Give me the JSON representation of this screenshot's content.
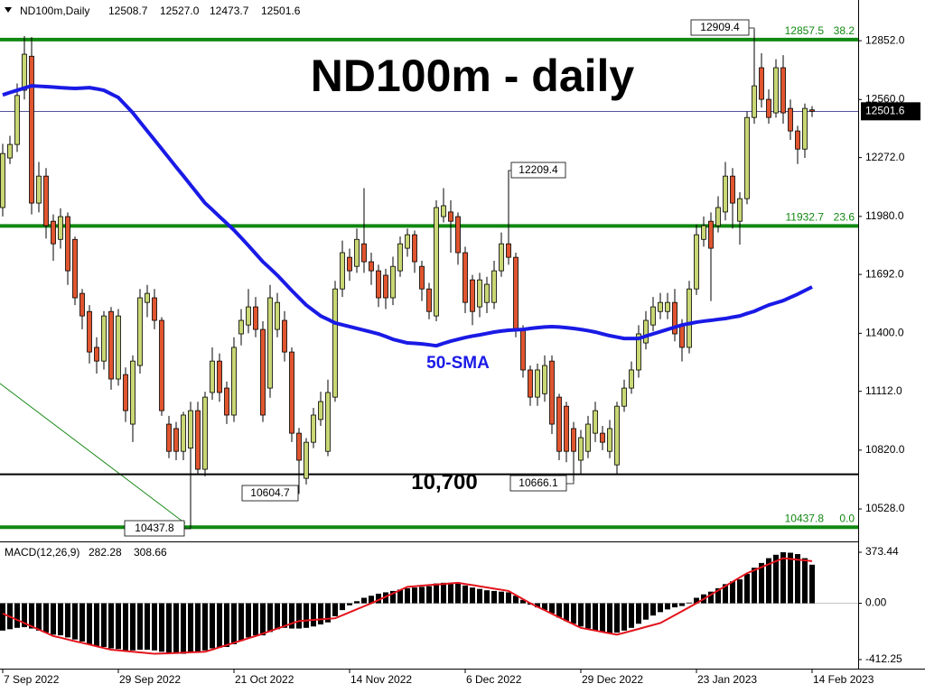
{
  "chart_data": {
    "type": "candlestick",
    "title": "ND100m - daily",
    "header": {
      "symbol": "ND100m,Daily",
      "ohlc_labels": [
        "12508.7",
        "12527.0",
        "12473.7",
        "12501.6"
      ]
    },
    "categories": [
      "7 Sep 2022",
      null,
      null,
      null,
      null,
      null,
      null,
      null,
      null,
      null,
      null,
      null,
      null,
      null,
      null,
      null,
      "29 Sep 2022",
      null,
      null,
      null,
      null,
      null,
      null,
      null,
      null,
      null,
      null,
      null,
      null,
      null,
      null,
      null,
      "21 Oct 2022",
      null,
      null,
      null,
      null,
      null,
      null,
      null,
      null,
      null,
      null,
      null,
      null,
      null,
      null,
      null,
      "14 Nov 2022",
      null,
      null,
      null,
      null,
      null,
      null,
      null,
      null,
      null,
      null,
      null,
      null,
      null,
      null,
      null,
      "6 Dec 2022",
      null,
      null,
      null,
      null,
      null,
      null,
      null,
      null,
      null,
      null,
      null,
      null,
      null,
      null,
      null,
      "29 Dec 2022",
      null,
      null,
      null,
      null,
      null,
      null,
      null,
      null,
      null,
      null,
      null,
      null,
      null,
      null,
      null,
      "23 Jan 2023",
      null,
      null,
      null,
      null,
      null,
      null,
      null,
      null,
      null,
      null,
      null,
      null,
      null,
      null,
      null,
      "14 Feb 2023"
    ],
    "open": [
      12024,
      12270,
      12337,
      12606,
      12775,
      12046,
      12180,
      11956,
      11866,
      11979,
      11866,
      11598,
      11508,
      11330,
      11262,
      11508,
      11173,
      11195,
      10949,
      11240,
      11553,
      11576,
      11464,
      10949,
      10927,
      10814,
      10830,
      11016,
      10725,
      11106,
      11262,
      11128,
      10994,
      11397,
      11441,
      11531,
      11419,
      11128,
      11419,
      11464,
      11307,
      10904,
      10680,
      10859,
      10972,
      10814,
      11083,
      11620,
      11777,
      11732,
      11844,
      11755,
      11710,
      11688,
      11576,
      11710,
      11822,
      11889,
      11732,
      11620,
      11486,
      11979,
      12002,
      11979,
      11800,
      11665,
      11531,
      11553,
      11553,
      11710,
      11844,
      11777,
      11419,
      11218,
      11083,
      11100,
      11262,
      11083,
      11038,
      10927,
      10770,
      10814,
      10904,
      10904,
      10814,
      10747,
      11038,
      11128,
      11218,
      11352,
      11441,
      11508,
      11508,
      11553,
      11441,
      11330,
      11620,
      11866,
      11956,
      11934,
      12002,
      12180,
      11956,
      12068,
      12471,
      12718,
      12561,
      12494,
      12718,
      12516,
      12404,
      12314,
      12508.7
    ],
    "high": [
      12340,
      12380,
      12640,
      12875,
      12870,
      12250,
      12220,
      11990,
      12020,
      12000,
      11880,
      11620,
      11540,
      11380,
      11510,
      11530,
      11520,
      11230,
      11290,
      11620,
      11640,
      11620,
      11480,
      10990,
      10960,
      11010,
      11060,
      11060,
      11110,
      11330,
      11300,
      11160,
      11380,
      11520,
      11620,
      11580,
      11460,
      11640,
      11600,
      11510,
      11330,
      10930,
      10880,
      11030,
      11110,
      11170,
      11660,
      11860,
      11820,
      11920,
      12120,
      11800,
      11740,
      11720,
      11780,
      11880,
      11920,
      11910,
      11760,
      11650,
      12060,
      12120,
      12060,
      12000,
      11830,
      11690,
      11700,
      11680,
      11760,
      11900,
      12209.4,
      11800,
      11440,
      11240,
      11250,
      11290,
      11290,
      11100,
      11060,
      10960,
      10920,
      10990,
      11060,
      10940,
      10970,
      11060,
      11170,
      11260,
      11440,
      11510,
      11580,
      11600,
      11600,
      11620,
      11470,
      11660,
      11940,
      11980,
      12000,
      12080,
      12250,
      12220,
      12100,
      12500,
      12909.4,
      12790,
      12610,
      12760,
      12780,
      12560,
      12430,
      12540,
      12527.0
    ],
    "low": [
      11980,
      12240,
      12300,
      12560,
      11990,
      12000,
      11870,
      11760,
      11820,
      11640,
      11540,
      11420,
      11250,
      11200,
      11220,
      11120,
      11140,
      10960,
      10860,
      11200,
      11480,
      11420,
      10990,
      10780,
      10770,
      10770,
      10437.8,
      10700,
      10690,
      11070,
      11060,
      10950,
      10960,
      11340,
      11400,
      11380,
      10960,
      11080,
      11380,
      11260,
      10860,
      10604.7,
      10650,
      10830,
      10940,
      10790,
      11060,
      11580,
      11660,
      11700,
      11700,
      11640,
      11530,
      11520,
      11540,
      11680,
      11780,
      11700,
      11560,
      11470,
      11460,
      11950,
      11800,
      11740,
      11500,
      11440,
      11480,
      11500,
      11520,
      11680,
      11740,
      11380,
      11180,
      11040,
      11040,
      11060,
      10900,
      10770,
      10760,
      10666.1,
      10700,
      10780,
      10860,
      10820,
      10780,
      10700,
      11010,
      11100,
      11180,
      11320,
      11410,
      11470,
      11470,
      11360,
      11260,
      11300,
      11590,
      11830,
      11560,
      11900,
      11960,
      11920,
      11840,
      12040,
      12440,
      12520,
      12440,
      12470,
      12440,
      12360,
      12240,
      12270,
      12473.7
    ],
    "close": [
      12292,
      12337,
      12580,
      12785,
      12046,
      12180,
      11934,
      11844,
      11979,
      11710,
      11576,
      11486,
      11307,
      11262,
      11486,
      11173,
      11486,
      11016,
      11262,
      11576,
      11598,
      11464,
      11016,
      10814,
      10814,
      10994,
      11016,
      10725,
      11083,
      11262,
      11106,
      10994,
      11330,
      11464,
      11531,
      11419,
      10994,
      11576,
      11553,
      11307,
      10904,
      10770,
      10859,
      10994,
      11061,
      11106,
      11620,
      11800,
      11710,
      11866,
      11755,
      11710,
      11576,
      11576,
      11732,
      11844,
      11889,
      11755,
      11620,
      11508,
      12024,
      12033,
      11956,
      11800,
      11553,
      11508,
      11665,
      11643,
      11710,
      11844,
      11777,
      11419,
      11218,
      11083,
      11218,
      11240,
      10949,
      10814,
      10814,
      10814,
      10882,
      10949,
      11016,
      10859,
      10927,
      11038,
      11128,
      11218,
      11397,
      11464,
      11531,
      11553,
      11553,
      11397,
      11330,
      11620,
      11889,
      11934,
      11822,
      12024,
      12180,
      12046,
      12068,
      12471,
      12628,
      12561,
      12471,
      12718,
      12494,
      12404,
      12314,
      12516,
      12501.6
    ],
    "up_color": "#c9d774",
    "down_color": "#e0552f",
    "sma": {
      "label": "50-SMA",
      "color": "#1a1ae6",
      "values": [
        12583,
        12595,
        12606,
        12617,
        12628,
        12626,
        12624,
        12622,
        12619,
        12617,
        12615,
        12617,
        12619,
        12613,
        12606,
        12588,
        12570,
        12532,
        12494,
        12449,
        12404,
        12360,
        12315,
        12270,
        12225,
        12181,
        12136,
        12091,
        12046,
        12013,
        11979,
        11946,
        11912,
        11874,
        11835,
        11795,
        11755,
        11722,
        11688,
        11650,
        11612,
        11576,
        11540,
        11513,
        11486,
        11469,
        11451,
        11442,
        11433,
        11424,
        11415,
        11406,
        11397,
        11384,
        11370,
        11361,
        11352,
        11350,
        11347,
        11343,
        11338,
        11350,
        11361,
        11370,
        11379,
        11386,
        11392,
        11399,
        11406,
        11411,
        11415,
        11417,
        11419,
        11424,
        11428,
        11431,
        11433,
        11431,
        11428,
        11424,
        11419,
        11413,
        11406,
        11397,
        11388,
        11381,
        11374,
        11374,
        11374,
        11386,
        11397,
        11408,
        11419,
        11430,
        11441,
        11448,
        11455,
        11460,
        11464,
        11469,
        11473,
        11480,
        11486,
        11498,
        11509,
        11525,
        11540,
        11551,
        11562,
        11578,
        11594,
        11612,
        11630
      ]
    },
    "levels": [
      {
        "price": 12857.5,
        "ratio": "38.2"
      },
      {
        "price": 11932.7,
        "ratio": "23.6"
      },
      {
        "price": 10437.8,
        "ratio": "0.0"
      }
    ],
    "level_color": "#118811",
    "support": {
      "value": 10700,
      "label": "10,700"
    },
    "ylim": [
      10376,
      13045
    ],
    "yticks": [
      {
        "value": 12852,
        "label": "12852.0"
      },
      {
        "value": 12560,
        "label": "12560.0"
      },
      {
        "value": 12272,
        "label": "12272.0"
      },
      {
        "value": 11980,
        "label": "11980.0"
      },
      {
        "value": 11692,
        "label": "11692.0"
      },
      {
        "value": 11400,
        "label": "11400.0"
      },
      {
        "value": 11112,
        "label": "11112.0"
      },
      {
        "value": 10820,
        "label": "10820.0"
      },
      {
        "value": 10528,
        "label": "10528.0"
      }
    ],
    "macd": {
      "label": "MACD(12,26,9)",
      "histogram_color": "#000000",
      "signal_color": "#e3141c",
      "histogram": [
        -200,
        -190,
        -180,
        -175,
        -185,
        -200,
        -215,
        -230,
        -235,
        -250,
        -265,
        -280,
        -300,
        -315,
        -320,
        -330,
        -335,
        -345,
        -345,
        -340,
        -340,
        -345,
        -355,
        -365,
        -370,
        -370,
        -360,
        -360,
        -345,
        -330,
        -325,
        -320,
        -300,
        -275,
        -250,
        -235,
        -235,
        -210,
        -190,
        -180,
        -185,
        -185,
        -180,
        -170,
        -155,
        -140,
        -95,
        -50,
        -15,
        15,
        40,
        55,
        70,
        80,
        90,
        100,
        110,
        115,
        120,
        125,
        145,
        150,
        150,
        145,
        130,
        115,
        105,
        95,
        90,
        85,
        80,
        55,
        25,
        -10,
        -30,
        -50,
        -75,
        -105,
        -130,
        -150,
        -170,
        -185,
        -200,
        -210,
        -220,
        -215,
        -200,
        -180,
        -150,
        -120,
        -90,
        -65,
        -45,
        -30,
        -20,
        5,
        40,
        65,
        85,
        110,
        140,
        160,
        175,
        215,
        260,
        295,
        330,
        355,
        373.44,
        370,
        360,
        330,
        282.28
      ],
      "signal": [
        -75,
        -99,
        -122,
        -146,
        -169,
        -193,
        -216,
        -240,
        -252,
        -265,
        -278,
        -290,
        -302,
        -315,
        -328,
        -340,
        -345,
        -350,
        -355,
        -360,
        -365,
        -370,
        -368,
        -366,
        -364,
        -361,
        -359,
        -357,
        -355,
        -339,
        -322,
        -306,
        -289,
        -273,
        -256,
        -240,
        -222,
        -203,
        -185,
        -167,
        -148,
        -130,
        -126,
        -122,
        -118,
        -114,
        -110,
        -88,
        -66,
        -44,
        -22,
        0,
        24,
        48,
        72,
        96,
        120,
        124,
        129,
        133,
        137,
        141,
        146,
        150,
        141,
        133,
        124,
        116,
        107,
        99,
        90,
        60,
        30,
        0,
        -26,
        -51,
        -77,
        -103,
        -129,
        -154,
        -180,
        -190,
        -200,
        -210,
        -220,
        -230,
        -216,
        -202,
        -188,
        -173,
        -159,
        -145,
        -116,
        -87,
        -58,
        -29,
        0,
        31,
        63,
        94,
        126,
        157,
        189,
        220,
        242,
        264,
        286,
        308,
        330,
        325,
        319,
        314,
        308.66
      ],
      "ylim": [
        -472,
        433
      ],
      "yticks": [
        373.44,
        {
          "value": 0,
          "label": "0.00"
        },
        -412.25
      ]
    }
  }
}
